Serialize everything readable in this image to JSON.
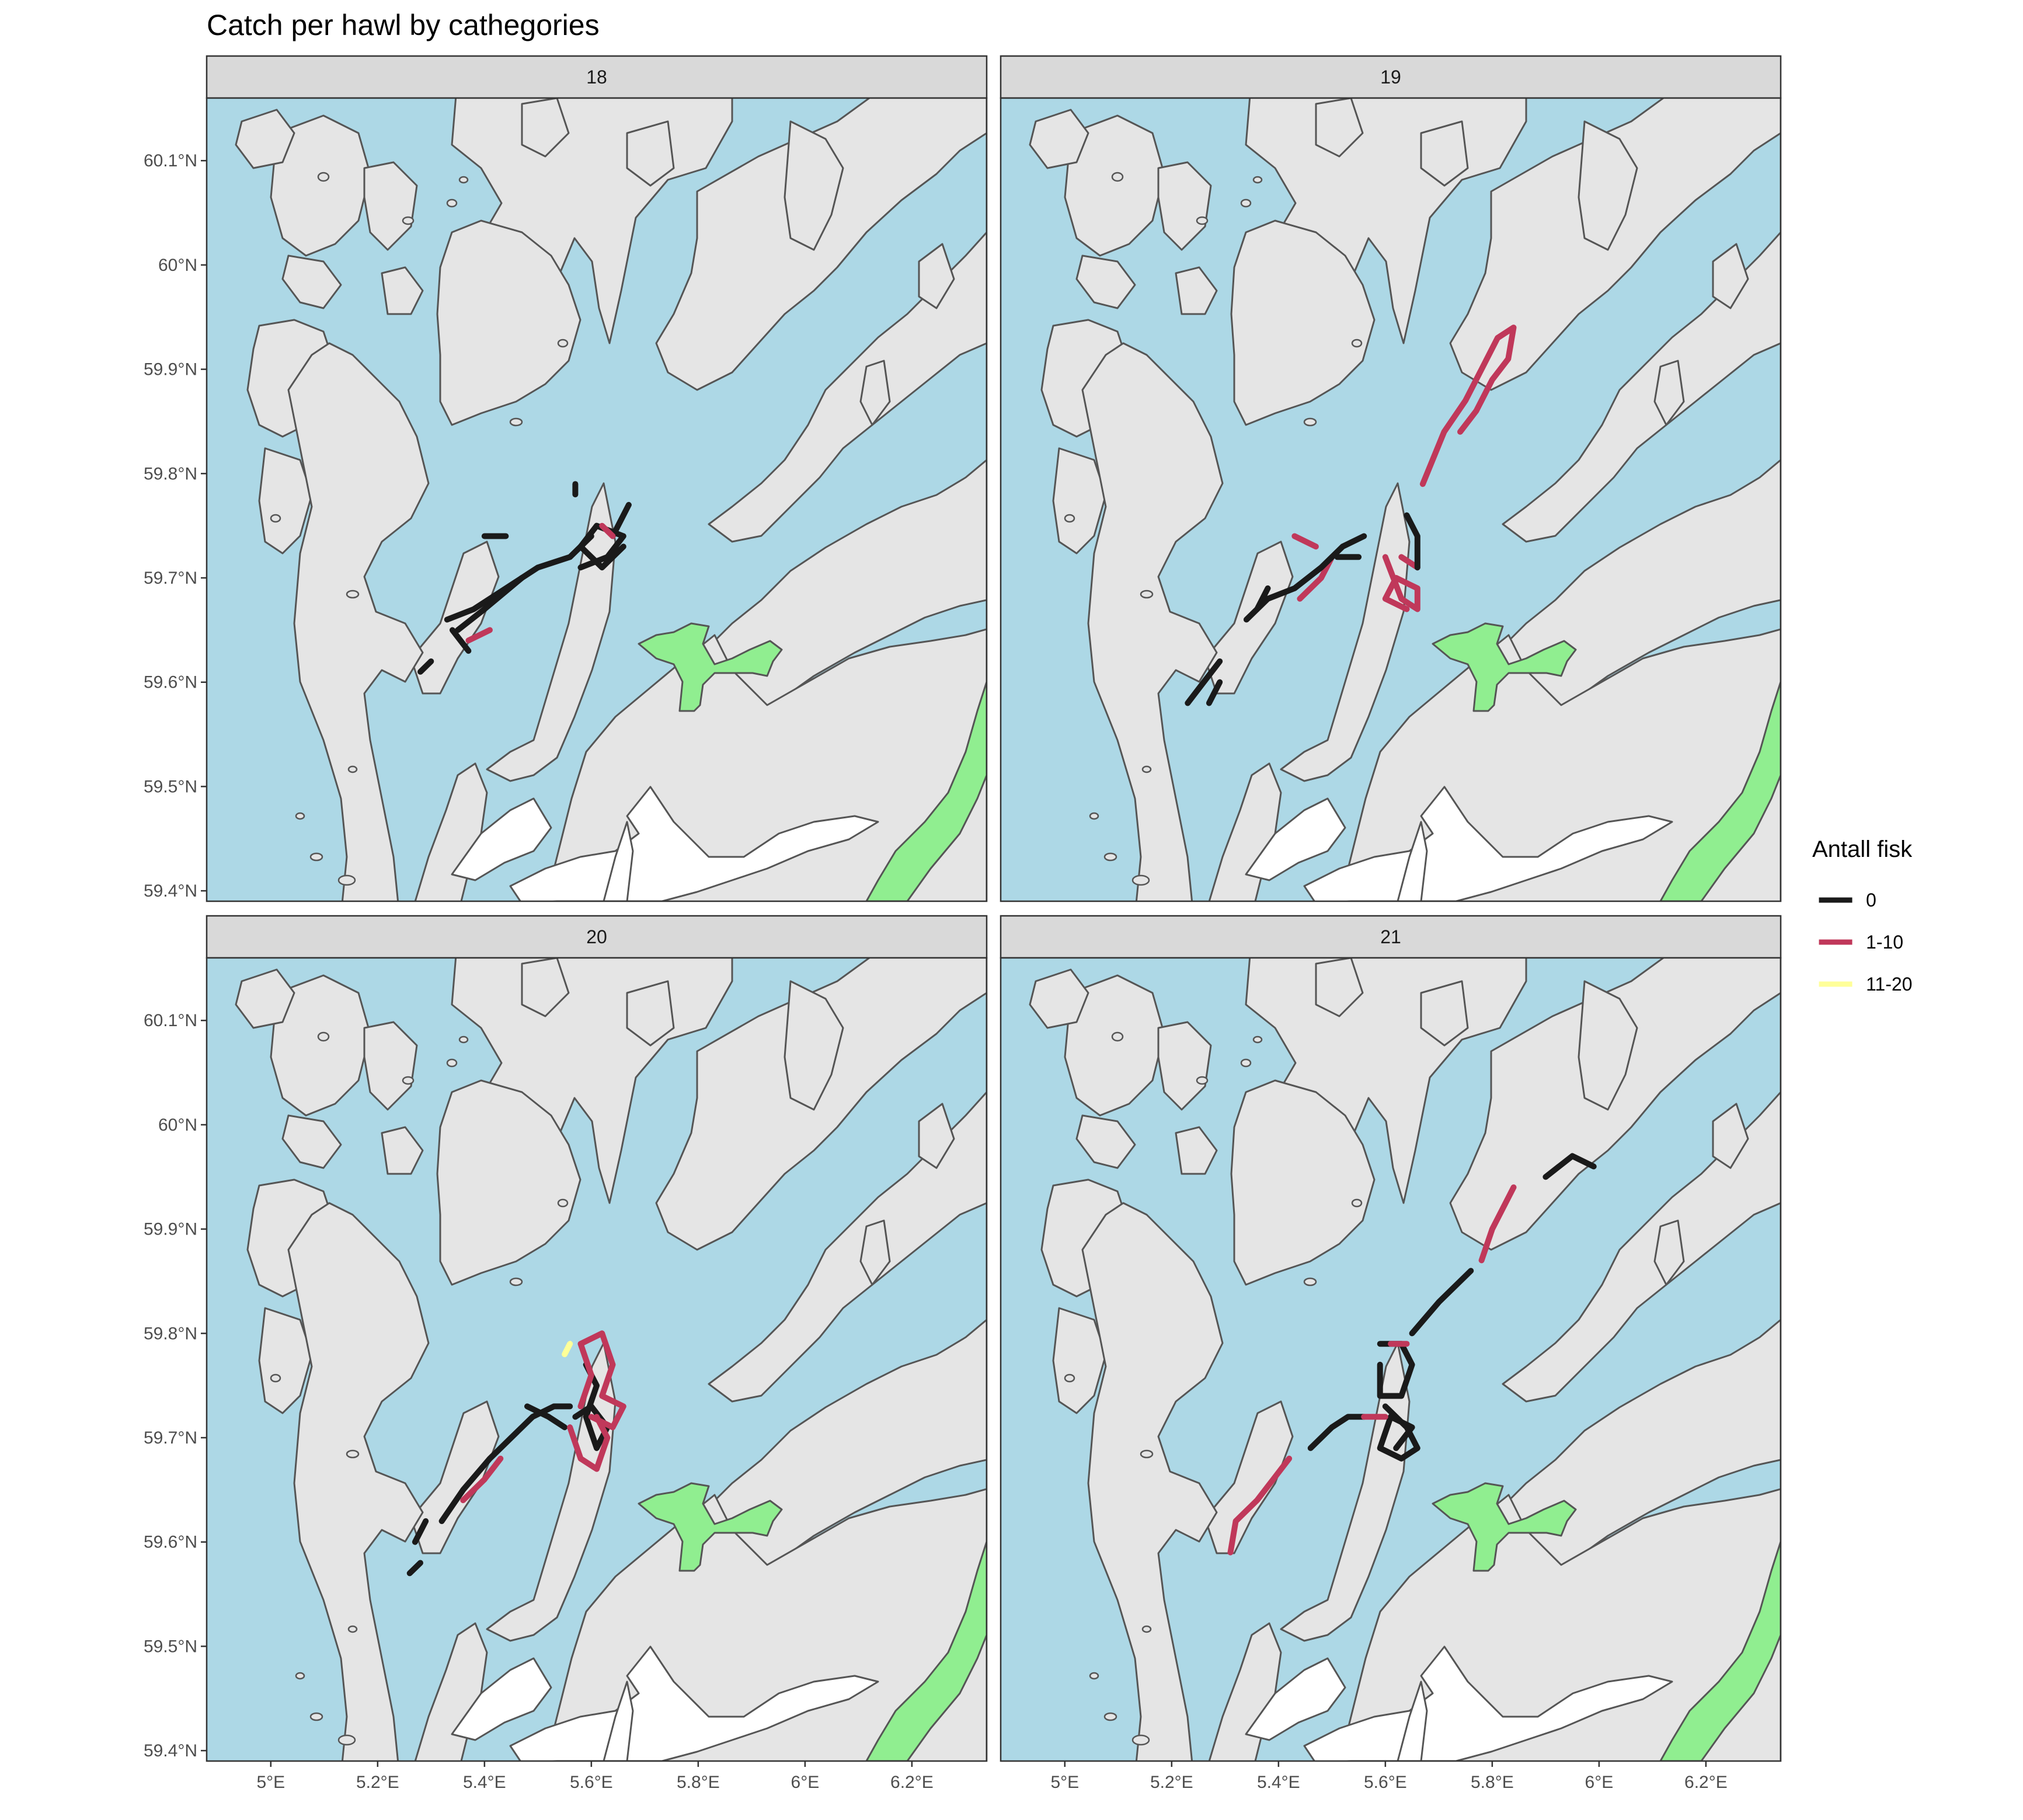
{
  "title": "Catch per hawl by cathegories",
  "colors": {
    "sea": "#add8e6",
    "land": "#e5e5e5",
    "coast": "#555555",
    "lake": "#ffffff",
    "protected_area": "#90ee90",
    "strip_bg": "#d9d9d9"
  },
  "axes": {
    "x_ticks": [
      "5°E",
      "5.2°E",
      "5.4°E",
      "5.6°E",
      "5.8°E",
      "6°E",
      "6.2°E"
    ],
    "y_ticks": [
      "60.1°N",
      "60°N",
      "59.9°N",
      "59.8°N",
      "59.7°N",
      "59.6°N",
      "59.5°N",
      "59.4°N"
    ]
  },
  "legend": {
    "title": "Antall fisk",
    "items": [
      {
        "label": "0",
        "color": "#1a1a1a"
      },
      {
        "label": "1-10",
        "color": "#c0385a"
      },
      {
        "label": "11-20",
        "color": "#ffff99"
      }
    ]
  },
  "chart_data": {
    "type": "map",
    "facet_by": "week",
    "x_range": [
      4.88,
      6.34
    ],
    "y_range": [
      59.39,
      60.16
    ],
    "panels": [
      {
        "label": "18",
        "tracks": [
          {
            "cat": "0",
            "lonlat": [
              [
                5.33,
                59.66
              ],
              [
                5.38,
                59.67
              ],
              [
                5.44,
                59.69
              ],
              [
                5.5,
                59.71
              ],
              [
                5.56,
                59.72
              ],
              [
                5.6,
                59.74
              ]
            ]
          },
          {
            "cat": "0",
            "lonlat": [
              [
                5.58,
                59.71
              ],
              [
                5.63,
                59.72
              ],
              [
                5.66,
                59.74
              ],
              [
                5.61,
                59.75
              ],
              [
                5.58,
                59.73
              ],
              [
                5.62,
                59.71
              ],
              [
                5.66,
                59.73
              ]
            ]
          },
          {
            "cat": "0",
            "lonlat": [
              [
                5.35,
                59.65
              ],
              [
                5.4,
                59.67
              ],
              [
                5.47,
                59.7
              ]
            ]
          },
          {
            "cat": "0",
            "lonlat": [
              [
                5.64,
                59.74
              ],
              [
                5.67,
                59.77
              ]
            ]
          },
          {
            "cat": "0",
            "lonlat": [
              [
                5.34,
                59.65
              ],
              [
                5.37,
                59.63
              ]
            ]
          },
          {
            "cat": "0",
            "lonlat": [
              [
                5.28,
                59.61
              ],
              [
                5.3,
                59.62
              ]
            ]
          },
          {
            "cat": "0",
            "lonlat": [
              [
                5.4,
                59.74
              ],
              [
                5.44,
                59.74
              ]
            ]
          },
          {
            "cat": "0",
            "lonlat": [
              [
                5.57,
                59.78
              ],
              [
                5.57,
                59.79
              ]
            ]
          },
          {
            "cat": "1-10",
            "lonlat": [
              [
                5.37,
                59.64
              ],
              [
                5.41,
                59.65
              ]
            ]
          },
          {
            "cat": "1-10",
            "lonlat": [
              [
                5.62,
                59.75
              ],
              [
                5.64,
                59.74
              ]
            ]
          }
        ]
      },
      {
        "label": "19",
        "tracks": [
          {
            "cat": "1-10",
            "lonlat": [
              [
                5.67,
                59.79
              ],
              [
                5.71,
                59.84
              ],
              [
                5.75,
                59.87
              ],
              [
                5.78,
                59.9
              ],
              [
                5.81,
                59.93
              ],
              [
                5.84,
                59.94
              ],
              [
                5.83,
                59.91
              ],
              [
                5.8,
                59.89
              ],
              [
                5.77,
                59.86
              ],
              [
                5.74,
                59.84
              ]
            ]
          },
          {
            "cat": "1-10",
            "lonlat": [
              [
                5.6,
                59.72
              ],
              [
                5.63,
                59.68
              ],
              [
                5.66,
                59.67
              ],
              [
                5.66,
                59.69
              ],
              [
                5.62,
                59.7
              ],
              [
                5.6,
                59.68
              ],
              [
                5.64,
                59.67
              ]
            ]
          },
          {
            "cat": "1-10",
            "lonlat": [
              [
                5.44,
                59.68
              ],
              [
                5.48,
                59.7
              ],
              [
                5.5,
                59.72
              ]
            ]
          },
          {
            "cat": "1-10",
            "lonlat": [
              [
                5.43,
                59.74
              ],
              [
                5.47,
                59.73
              ]
            ]
          },
          {
            "cat": "1-10",
            "lonlat": [
              [
                5.63,
                59.72
              ],
              [
                5.66,
                59.71
              ]
            ]
          },
          {
            "cat": "0",
            "lonlat": [
              [
                5.34,
                59.66
              ],
              [
                5.38,
                59.68
              ],
              [
                5.43,
                59.69
              ],
              [
                5.48,
                59.71
              ],
              [
                5.52,
                59.73
              ],
              [
                5.56,
                59.74
              ]
            ]
          },
          {
            "cat": "0",
            "lonlat": [
              [
                5.64,
                59.76
              ],
              [
                5.66,
                59.74
              ],
              [
                5.66,
                59.71
              ]
            ]
          },
          {
            "cat": "0",
            "lonlat": [
              [
                5.23,
                59.58
              ],
              [
                5.26,
                59.6
              ],
              [
                5.29,
                59.62
              ]
            ]
          },
          {
            "cat": "0",
            "lonlat": [
              [
                5.27,
                59.58
              ],
              [
                5.29,
                59.6
              ]
            ]
          },
          {
            "cat": "0",
            "lonlat": [
              [
                5.36,
                59.67
              ],
              [
                5.38,
                59.69
              ]
            ]
          },
          {
            "cat": "0",
            "lonlat": [
              [
                5.51,
                59.72
              ],
              [
                5.55,
                59.72
              ]
            ]
          }
        ]
      },
      {
        "label": "20",
        "tracks": [
          {
            "cat": "0",
            "lonlat": [
              [
                5.32,
                59.62
              ],
              [
                5.36,
                59.65
              ],
              [
                5.41,
                59.68
              ],
              [
                5.45,
                59.7
              ],
              [
                5.49,
                59.72
              ],
              [
                5.53,
                59.73
              ],
              [
                5.56,
                59.73
              ]
            ]
          },
          {
            "cat": "0",
            "lonlat": [
              [
                5.57,
                59.72
              ],
              [
                5.6,
                59.73
              ],
              [
                5.63,
                59.71
              ],
              [
                5.61,
                59.69
              ],
              [
                5.59,
                59.72
              ],
              [
                5.61,
                59.75
              ],
              [
                5.59,
                59.77
              ]
            ]
          },
          {
            "cat": "0",
            "lonlat": [
              [
                5.48,
                59.73
              ],
              [
                5.52,
                59.72
              ],
              [
                5.55,
                59.71
              ]
            ]
          },
          {
            "cat": "0",
            "lonlat": [
              [
                5.27,
                59.6
              ],
              [
                5.29,
                59.62
              ]
            ]
          },
          {
            "cat": "0",
            "lonlat": [
              [
                5.26,
                59.57
              ],
              [
                5.28,
                59.58
              ]
            ]
          },
          {
            "cat": "1-10",
            "lonlat": [
              [
                5.58,
                59.73
              ],
              [
                5.6,
                59.76
              ],
              [
                5.58,
                59.79
              ],
              [
                5.62,
                59.8
              ],
              [
                5.64,
                59.77
              ],
              [
                5.62,
                59.74
              ],
              [
                5.66,
                59.73
              ],
              [
                5.64,
                59.71
              ],
              [
                5.6,
                59.72
              ]
            ]
          },
          {
            "cat": "1-10",
            "lonlat": [
              [
                5.56,
                59.71
              ],
              [
                5.58,
                59.68
              ],
              [
                5.61,
                59.67
              ],
              [
                5.63,
                59.7
              ],
              [
                5.61,
                59.72
              ]
            ]
          },
          {
            "cat": "1-10",
            "lonlat": [
              [
                5.36,
                59.64
              ],
              [
                5.4,
                59.66
              ],
              [
                5.43,
                59.68
              ]
            ]
          },
          {
            "cat": "11-20",
            "lonlat": [
              [
                5.55,
                59.78
              ],
              [
                5.56,
                59.79
              ]
            ]
          }
        ]
      },
      {
        "label": "21",
        "tracks": [
          {
            "cat": "0",
            "lonlat": [
              [
                5.6,
                59.73
              ],
              [
                5.64,
                59.71
              ],
              [
                5.66,
                59.69
              ],
              [
                5.63,
                59.68
              ],
              [
                5.59,
                59.69
              ],
              [
                5.61,
                59.72
              ],
              [
                5.65,
                59.71
              ],
              [
                5.62,
                59.69
              ]
            ]
          },
          {
            "cat": "0",
            "lonlat": [
              [
                5.46,
                59.69
              ],
              [
                5.5,
                59.71
              ],
              [
                5.53,
                59.72
              ],
              [
                5.56,
                59.72
              ]
            ]
          },
          {
            "cat": "0",
            "lonlat": [
              [
                5.59,
                59.79
              ],
              [
                5.63,
                59.79
              ],
              [
                5.65,
                59.77
              ],
              [
                5.63,
                59.74
              ],
              [
                5.59,
                59.74
              ],
              [
                5.59,
                59.77
              ]
            ]
          },
          {
            "cat": "0",
            "lonlat": [
              [
                5.65,
                59.8
              ],
              [
                5.7,
                59.83
              ],
              [
                5.76,
                59.86
              ]
            ]
          },
          {
            "cat": "0",
            "lonlat": [
              [
                5.9,
                59.95
              ],
              [
                5.95,
                59.97
              ],
              [
                5.99,
                59.96
              ]
            ]
          },
          {
            "cat": "1-10",
            "lonlat": [
              [
                5.31,
                59.59
              ],
              [
                5.32,
                59.62
              ],
              [
                5.36,
                59.64
              ],
              [
                5.39,
                59.66
              ],
              [
                5.42,
                59.68
              ]
            ]
          },
          {
            "cat": "1-10",
            "lonlat": [
              [
                5.78,
                59.87
              ],
              [
                5.8,
                59.9
              ],
              [
                5.84,
                59.94
              ]
            ]
          },
          {
            "cat": "1-10",
            "lonlat": [
              [
                5.56,
                59.72
              ],
              [
                5.6,
                59.72
              ]
            ]
          },
          {
            "cat": "1-10",
            "lonlat": [
              [
                5.61,
                59.79
              ],
              [
                5.64,
                59.79
              ]
            ]
          }
        ]
      }
    ]
  }
}
